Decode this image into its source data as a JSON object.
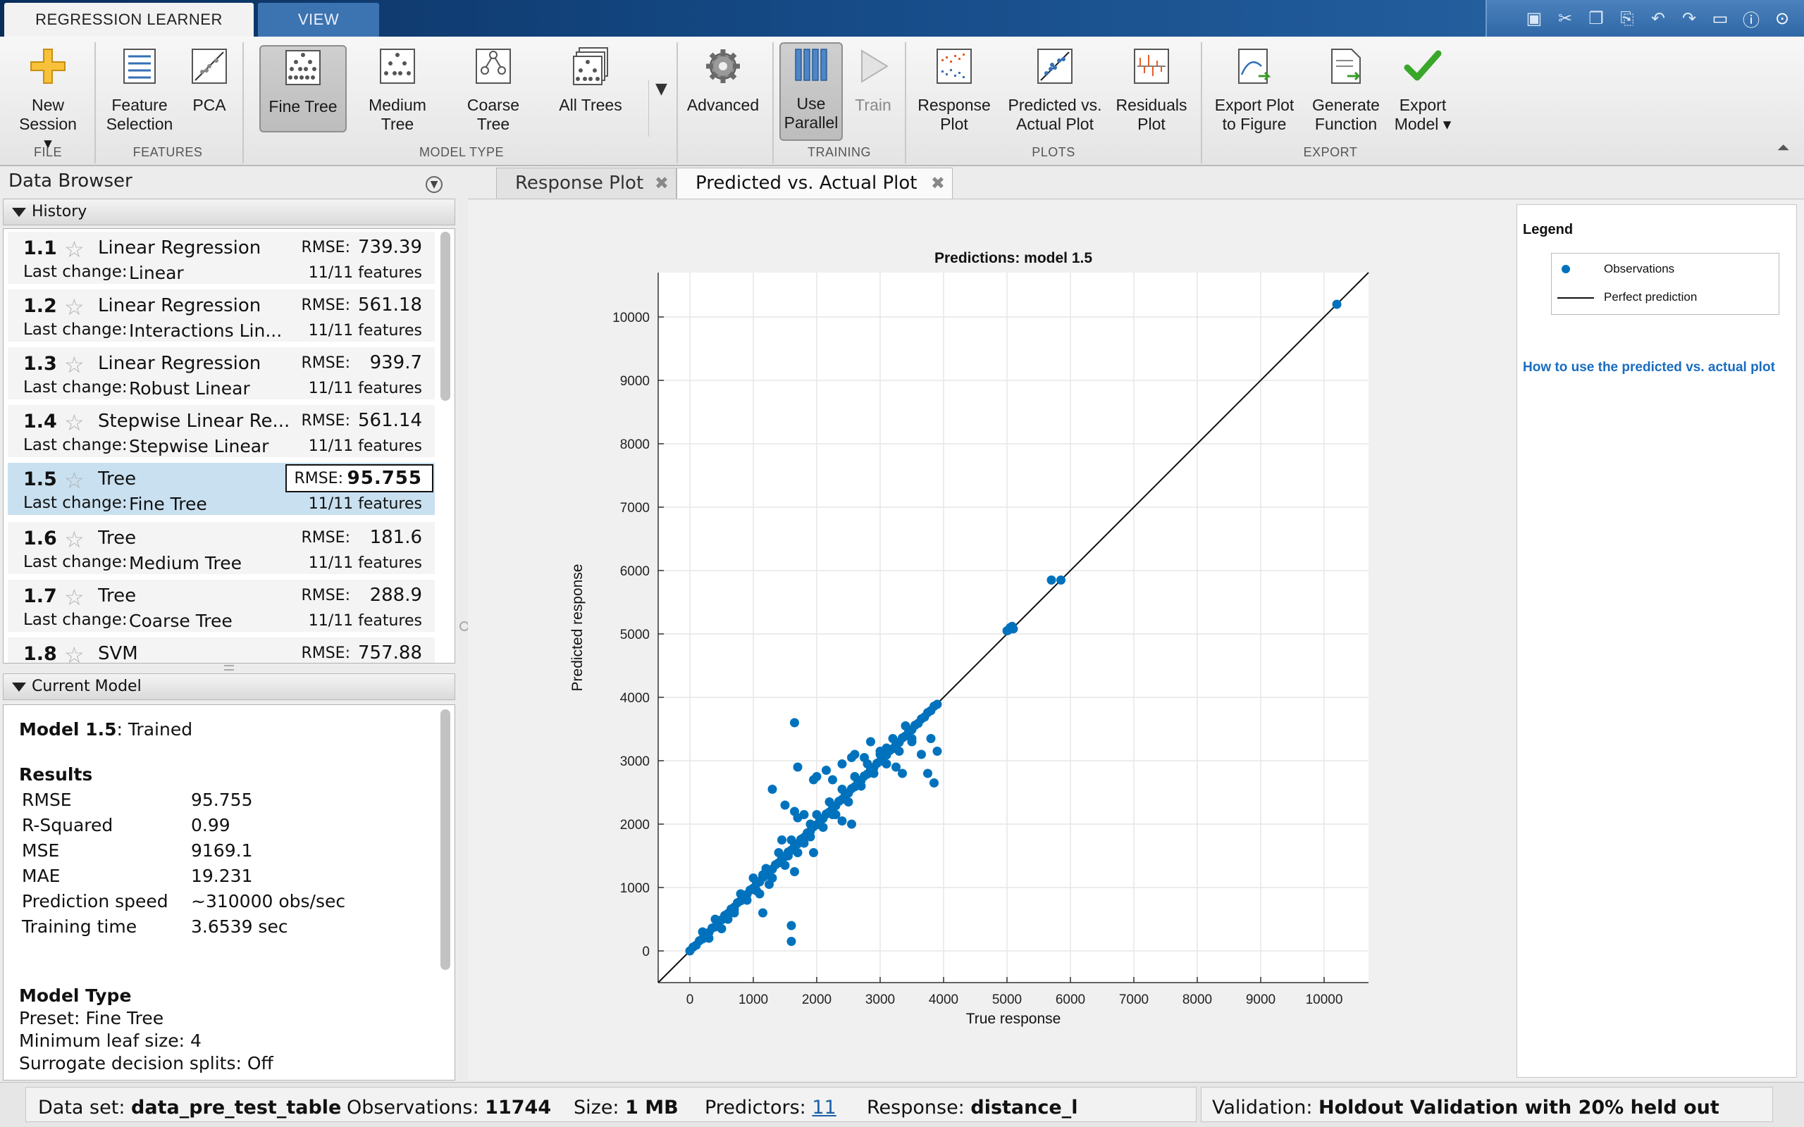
{
  "tabs": {
    "regression_learner": "REGRESSION LEARNER",
    "view": "VIEW"
  },
  "ribbon": {
    "new_session": "New Session ▾",
    "feature_selection": "Feature Selection",
    "pca": "PCA",
    "fine_tree": "Fine Tree",
    "medium_tree": "Medium Tree",
    "coarse_tree": "Coarse Tree",
    "all_trees": "All Trees",
    "advanced": "Advanced",
    "use_parallel": "Use Parallel",
    "train": "Train",
    "response_plot": "Response Plot",
    "predicted_vs_actual_plot": "Predicted vs. Actual Plot",
    "residuals_plot": "Residuals Plot",
    "export_plot_to_figure": "Export Plot to Figure",
    "generate_function": "Generate Function",
    "export_model": "Export Model ▾",
    "groups": {
      "file": "FILE",
      "features": "FEATURES",
      "model_type": "MODEL TYPE",
      "training": "TRAINING",
      "plots": "PLOTS",
      "export": "EXPORT"
    }
  },
  "data_browser": {
    "title": "Data Browser",
    "history_label": "History",
    "last_change_label": "Last change:",
    "rmse_label": "RMSE:",
    "history": [
      {
        "num": "1.1",
        "type": "Linear Regression",
        "rmse": "739.39",
        "last_change": "Linear",
        "features": "11/11 features"
      },
      {
        "num": "1.2",
        "type": "Linear Regression",
        "rmse": "561.18",
        "last_change": "Interactions Lin...",
        "features": "11/11 features"
      },
      {
        "num": "1.3",
        "type": "Linear Regression",
        "rmse": "939.7",
        "last_change": "Robust Linear",
        "features": "11/11 features"
      },
      {
        "num": "1.4",
        "type": "Stepwise Linear Re...",
        "rmse": "561.14",
        "last_change": "Stepwise Linear",
        "features": "11/11 features"
      },
      {
        "num": "1.5",
        "type": "Tree",
        "rmse": "95.755",
        "last_change": "Fine Tree",
        "features": "11/11 features"
      },
      {
        "num": "1.6",
        "type": "Tree",
        "rmse": "181.6",
        "last_change": "Medium Tree",
        "features": "11/11 features"
      },
      {
        "num": "1.7",
        "type": "Tree",
        "rmse": "288.9",
        "last_change": "Coarse Tree",
        "features": "11/11 features"
      },
      {
        "num": "1.8",
        "type": "SVM",
        "rmse": "757.88",
        "last_change": "",
        "features": ""
      }
    ],
    "current_model_label": "Current Model",
    "current_model": {
      "model_num": "Model 1.5",
      "status": ": Trained",
      "results_label": "Results",
      "results": [
        {
          "k": "RMSE",
          "v": "95.755"
        },
        {
          "k": "R-Squared",
          "v": "0.99"
        },
        {
          "k": "MSE",
          "v": "9169.1"
        },
        {
          "k": "MAE",
          "v": "19.231"
        },
        {
          "k": "Prediction speed",
          "v": "~310000 obs/sec"
        },
        {
          "k": "Training time",
          "v": "3.6539 sec"
        }
      ],
      "model_type_label": "Model Type",
      "preset": "Preset: Fine Tree",
      "min_leaf": "Minimum leaf size: 4",
      "surrogate": "Surrogate decision splits: Off"
    }
  },
  "doc_tabs": {
    "response_plot": "Response Plot",
    "predicted_vs_actual": "Predicted vs. Actual Plot"
  },
  "legend": {
    "title": "Legend",
    "observations": "Observations",
    "perfect_prediction": "Perfect prediction",
    "help_link": "How to use the predicted vs. actual plot"
  },
  "status": {
    "dataset_label": "Data set:",
    "dataset": "data_pre_test_table",
    "observations_label": "Observations:",
    "observations": "11744",
    "size_label": "Size:",
    "size": "1 MB",
    "predictors_label": "Predictors:",
    "predictors": "11",
    "response_label": "Response:",
    "response": "distance_l",
    "validation_label": "Validation:",
    "validation": "Holdout Validation with 20% held out"
  },
  "colors": {
    "marker": "#0072bd",
    "accent": "#1a5fa8",
    "selected_row": "#c9e0f0"
  },
  "chart_data": {
    "type": "scatter",
    "title": "Predictions: model 1.5",
    "xlabel": "True response",
    "ylabel": "Predicted response",
    "xlim": [
      -500,
      10700
    ],
    "ylim": [
      -500,
      10700
    ],
    "xticks": [
      0,
      1000,
      2000,
      3000,
      4000,
      5000,
      6000,
      7000,
      8000,
      9000,
      10000
    ],
    "yticks": [
      0,
      1000,
      2000,
      3000,
      4000,
      5000,
      6000,
      7000,
      8000,
      9000,
      10000
    ],
    "grid": true,
    "reference_line": {
      "name": "Perfect prediction",
      "from": [
        -500,
        -500
      ],
      "to": [
        10700,
        10700
      ]
    },
    "series": [
      {
        "name": "Observations",
        "points": [
          [
            0,
            0
          ],
          [
            50,
            60
          ],
          [
            100,
            90
          ],
          [
            150,
            160
          ],
          [
            200,
            190
          ],
          [
            250,
            260
          ],
          [
            300,
            290
          ],
          [
            350,
            360
          ],
          [
            400,
            380
          ],
          [
            450,
            470
          ],
          [
            500,
            490
          ],
          [
            550,
            560
          ],
          [
            600,
            590
          ],
          [
            650,
            660
          ],
          [
            700,
            690
          ],
          [
            750,
            760
          ],
          [
            800,
            790
          ],
          [
            850,
            860
          ],
          [
            900,
            890
          ],
          [
            950,
            960
          ],
          [
            1000,
            990
          ],
          [
            1050,
            1060
          ],
          [
            1100,
            1090
          ],
          [
            1150,
            1160
          ],
          [
            1200,
            1190
          ],
          [
            1250,
            1260
          ],
          [
            1300,
            1290
          ],
          [
            1350,
            1360
          ],
          [
            1400,
            1390
          ],
          [
            1450,
            1460
          ],
          [
            1500,
            1490
          ],
          [
            1550,
            1560
          ],
          [
            1600,
            1590
          ],
          [
            1650,
            1660
          ],
          [
            1700,
            1690
          ],
          [
            1750,
            1760
          ],
          [
            1800,
            1790
          ],
          [
            1850,
            1860
          ],
          [
            1900,
            1890
          ],
          [
            1950,
            1960
          ],
          [
            2000,
            1990
          ],
          [
            2050,
            2060
          ],
          [
            2100,
            2090
          ],
          [
            2150,
            2160
          ],
          [
            2200,
            2190
          ],
          [
            2250,
            2260
          ],
          [
            2300,
            2290
          ],
          [
            2350,
            2360
          ],
          [
            2400,
            2390
          ],
          [
            2450,
            2460
          ],
          [
            2500,
            2490
          ],
          [
            2550,
            2560
          ],
          [
            2600,
            2590
          ],
          [
            2650,
            2660
          ],
          [
            2700,
            2690
          ],
          [
            2750,
            2760
          ],
          [
            2800,
            2790
          ],
          [
            2850,
            2860
          ],
          [
            2900,
            2890
          ],
          [
            2950,
            2960
          ],
          [
            3000,
            2990
          ],
          [
            3050,
            3060
          ],
          [
            3100,
            3090
          ],
          [
            3150,
            3160
          ],
          [
            3200,
            3190
          ],
          [
            3250,
            3260
          ],
          [
            3300,
            3290
          ],
          [
            3350,
            3360
          ],
          [
            3400,
            3390
          ],
          [
            3450,
            3460
          ],
          [
            3500,
            3490
          ],
          [
            3550,
            3560
          ],
          [
            3600,
            3590
          ],
          [
            3650,
            3660
          ],
          [
            3700,
            3690
          ],
          [
            3750,
            3760
          ],
          [
            3800,
            3790
          ],
          [
            3850,
            3860
          ],
          [
            3900,
            3890
          ],
          [
            200,
            300
          ],
          [
            400,
            500
          ],
          [
            600,
            500
          ],
          [
            800,
            900
          ],
          [
            1000,
            1150
          ],
          [
            1200,
            1300
          ],
          [
            1400,
            1550
          ],
          [
            1600,
            1750
          ],
          [
            1800,
            1700
          ],
          [
            2000,
            2150
          ],
          [
            2200,
            2350
          ],
          [
            2400,
            2550
          ],
          [
            2600,
            2750
          ],
          [
            2800,
            2950
          ],
          [
            3000,
            3150
          ],
          [
            3200,
            3350
          ],
          [
            3400,
            3550
          ],
          [
            300,
            200
          ],
          [
            500,
            350
          ],
          [
            700,
            600
          ],
          [
            900,
            800
          ],
          [
            1100,
            900
          ],
          [
            1300,
            1150
          ],
          [
            1500,
            1350
          ],
          [
            1700,
            1550
          ],
          [
            1900,
            1800
          ],
          [
            2100,
            1950
          ],
          [
            2300,
            2150
          ],
          [
            2500,
            2350
          ],
          [
            2700,
            2600
          ],
          [
            2900,
            2800
          ],
          [
            3100,
            2950
          ],
          [
            3300,
            3150
          ],
          [
            3500,
            3350
          ],
          [
            1650,
            3600
          ],
          [
            1700,
            2900
          ],
          [
            1300,
            2550
          ],
          [
            1500,
            2300
          ],
          [
            1650,
            2200
          ],
          [
            1700,
            2100
          ],
          [
            1900,
            2000
          ],
          [
            1950,
            2700
          ],
          [
            2000,
            2750
          ],
          [
            2150,
            2850
          ],
          [
            2250,
            2700
          ],
          [
            2400,
            2950
          ],
          [
            2550,
            3050
          ],
          [
            2600,
            3100
          ],
          [
            2750,
            3050
          ],
          [
            2850,
            3300
          ],
          [
            3000,
            3100
          ],
          [
            3100,
            3200
          ],
          [
            3250,
            2900
          ],
          [
            3500,
            3300
          ],
          [
            3650,
            3100
          ],
          [
            3800,
            3350
          ],
          [
            3900,
            3150
          ],
          [
            3350,
            2800
          ],
          [
            3750,
            2800
          ],
          [
            3850,
            2650
          ],
          [
            1450,
            1750
          ],
          [
            1550,
            1500
          ],
          [
            1800,
            2150
          ],
          [
            2250,
            2150
          ],
          [
            2400,
            2050
          ],
          [
            2550,
            2000
          ],
          [
            1950,
            1550
          ],
          [
            1250,
            1050
          ],
          [
            1050,
            950
          ],
          [
            1150,
            1200
          ],
          [
            1650,
            1250
          ],
          [
            1600,
            400
          ],
          [
            1600,
            150
          ],
          [
            1150,
            600
          ],
          [
            700,
            650
          ],
          [
            5000,
            5050
          ],
          [
            5050,
            5100
          ],
          [
            5100,
            5080
          ],
          [
            5020,
            5060
          ],
          [
            5080,
            5120
          ],
          [
            5700,
            5850
          ],
          [
            5850,
            5850
          ],
          [
            10200,
            10200
          ]
        ]
      }
    ]
  }
}
